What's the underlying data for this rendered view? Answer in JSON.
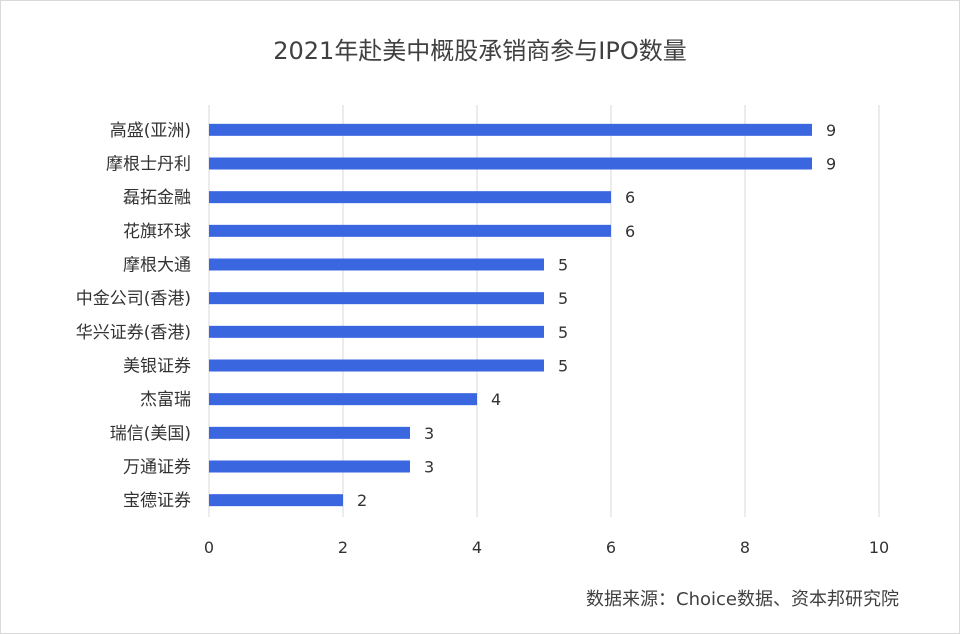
{
  "chart_data": {
    "type": "bar",
    "orientation": "horizontal",
    "title": "2021年赴美中概股承销商参与IPO数量",
    "categories": [
      "高盛(亚洲)",
      "摩根士丹利",
      "磊拓金融",
      "花旗环球",
      "摩根大通",
      "中金公司(香港)",
      "华兴证券(香港)",
      "美银证券",
      "杰富瑞",
      "瑞信(美国)",
      "万通证券",
      "宝德证券"
    ],
    "values": [
      9,
      9,
      6,
      6,
      5,
      5,
      5,
      5,
      4,
      3,
      3,
      2
    ],
    "xlim": [
      0,
      10
    ],
    "xticks": [
      0,
      2,
      4,
      6,
      8,
      10
    ],
    "xlabel": "",
    "ylabel": "",
    "bar_color": "#3a66e0",
    "grid_color": "#d9d9d9",
    "grid": true,
    "legend": "none"
  },
  "source": "数据来源：Choice数据、资本邦研究院"
}
